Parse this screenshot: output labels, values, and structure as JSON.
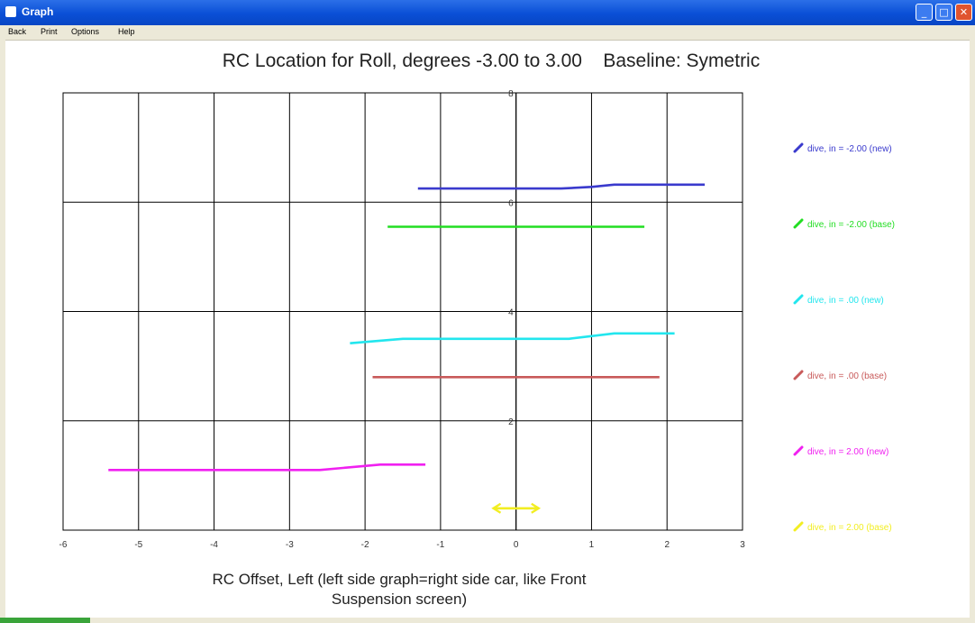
{
  "window": {
    "title": "Graph",
    "minimize_symbol": "_",
    "maximize_symbol": "□",
    "close_symbol": "✕"
  },
  "menu": [
    "Back",
    "Print",
    "Options",
    "Help"
  ],
  "colors": {
    "grid": "#000000",
    "series_new_neg2": "#3a3acd",
    "series_base_neg2": "#22dd22",
    "series_new_0": "#22e6ee",
    "series_base_0": "#c85a5a",
    "series_new_pos2": "#f020f0",
    "series_base_pos2": "#f2ee22"
  },
  "chart_data": {
    "type": "line",
    "title": "RC Location for Roll, degrees -3.00 to 3.00    Baseline: Symetric",
    "xlabel": "RC Offset, Left (left side graph=right side car, like Front Suspension screen)",
    "ylabel": "",
    "xlim": [
      -6,
      3
    ],
    "ylim": [
      0,
      8
    ],
    "x_ticks": [
      "-6",
      "-5",
      "-4",
      "-3",
      "-2",
      "-1",
      "0",
      "1",
      "2",
      "3"
    ],
    "y_ticks": [
      "2",
      "4",
      "6",
      "8"
    ],
    "grid": true,
    "legend_position": "right",
    "series": [
      {
        "name": "dive, in = -2.00 (new)",
        "color": "#3a3acd",
        "points": [
          [
            -1.3,
            6.25
          ],
          [
            0.6,
            6.25
          ],
          [
            1.0,
            6.28
          ],
          [
            1.3,
            6.32
          ],
          [
            2.5,
            6.32
          ]
        ]
      },
      {
        "name": "dive, in = -2.00 (base)",
        "color": "#22dd22",
        "points": [
          [
            -1.7,
            5.55
          ],
          [
            1.7,
            5.55
          ]
        ]
      },
      {
        "name": "dive, in = .00 (new)",
        "color": "#22e6ee",
        "points": [
          [
            -2.2,
            3.42
          ],
          [
            -1.5,
            3.5
          ],
          [
            0.7,
            3.5
          ],
          [
            1.3,
            3.6
          ],
          [
            2.1,
            3.6
          ]
        ]
      },
      {
        "name": "dive, in = .00 (base)",
        "color": "#c85a5a",
        "points": [
          [
            -1.9,
            2.8
          ],
          [
            1.9,
            2.8
          ]
        ]
      },
      {
        "name": "dive, in = 2.00 (new)",
        "color": "#f020f0",
        "points": [
          [
            -5.4,
            1.1
          ],
          [
            -2.6,
            1.1
          ],
          [
            -1.8,
            1.2
          ],
          [
            -1.2,
            1.2
          ]
        ]
      },
      {
        "name": "dive, in = 2.00 (base)",
        "color": "#f2ee22",
        "points": [
          [
            -0.3,
            0.4
          ],
          [
            0.3,
            0.4
          ]
        ],
        "arrowheads": true
      }
    ]
  }
}
